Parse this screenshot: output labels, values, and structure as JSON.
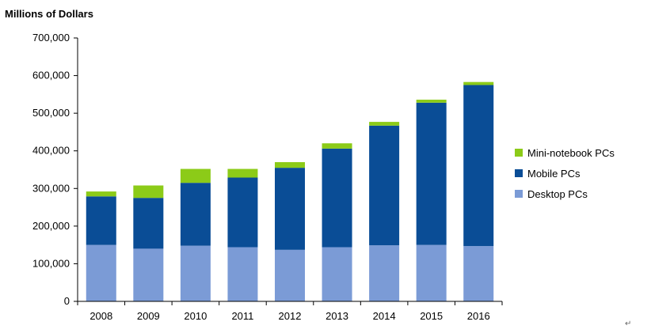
{
  "chart_data": {
    "type": "bar",
    "stacked": true,
    "ylabel": "Millions of Dollars",
    "categories": [
      "2008",
      "2009",
      "2010",
      "2011",
      "2012",
      "2013",
      "2014",
      "2015",
      "2016"
    ],
    "series": [
      {
        "name": "Desktop PCs",
        "color": "#7b9bd6",
        "values": [
          150000,
          140000,
          148000,
          144000,
          137000,
          144000,
          149000,
          150000,
          147000
        ]
      },
      {
        "name": "Mobile PCs",
        "color": "#0a4d96",
        "values": [
          129000,
          135000,
          167000,
          185000,
          218000,
          262000,
          318000,
          378000,
          428000
        ]
      },
      {
        "name": "Mini-notebook PCs",
        "color": "#8ccb18",
        "values": [
          13000,
          33000,
          37000,
          23000,
          15000,
          14000,
          10000,
          8000,
          8000
        ]
      }
    ],
    "ylim": [
      0,
      700000
    ],
    "yticks": [
      "0",
      "100,000",
      "200,000",
      "300,000",
      "400,000",
      "500,000",
      "600,000",
      "700,000"
    ],
    "grid": false,
    "legend_position": "right"
  },
  "legend_order": [
    "Mini-notebook PCs",
    "Mobile PCs",
    "Desktop PCs"
  ],
  "marker_glyph": "↵"
}
